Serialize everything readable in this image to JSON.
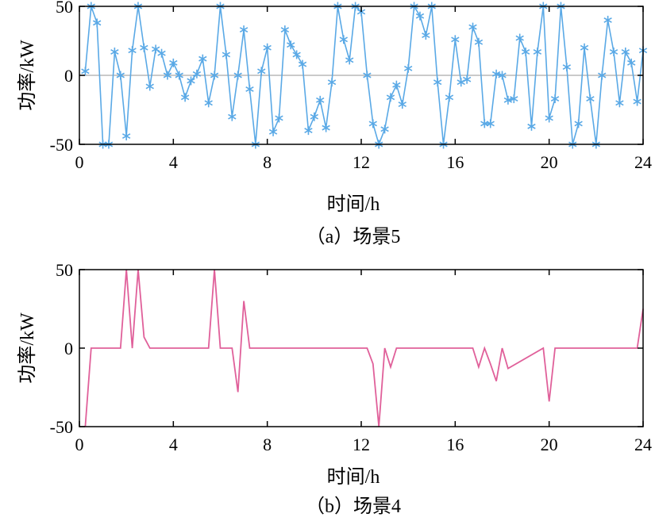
{
  "chart_data": [
    {
      "type": "line",
      "marker": "asterisk",
      "caption": "（a）场景5",
      "xlabel": "时间/h",
      "ylabel": "功率/kW",
      "xlim": [
        0,
        24
      ],
      "ylim": [
        -50,
        50
      ],
      "xticks": [
        0,
        4,
        8,
        12,
        16,
        20,
        24
      ],
      "yticks": [
        -50,
        0,
        50
      ],
      "zero_line": true,
      "color": "#5aa9e6",
      "series": [
        {
          "x": [
            0.25,
            0.5,
            0.75,
            1,
            1.25,
            1.5,
            1.75,
            2,
            2.25,
            2.5,
            2.75,
            3,
            3.25,
            3.5,
            3.75,
            4,
            4.25,
            4.5,
            4.75,
            5,
            5.25,
            5.5,
            5.75,
            6,
            6.25,
            6.5,
            6.75,
            7,
            7.25,
            7.5,
            7.75,
            8,
            8.25,
            8.5,
            8.75,
            9,
            9.25,
            9.5,
            9.75,
            10,
            10.25,
            10.5,
            10.75,
            11,
            11.25,
            11.5,
            11.75,
            12,
            12.25,
            12.5,
            12.75,
            13,
            13.25,
            13.5,
            13.75,
            14,
            14.25,
            14.5,
            14.75,
            15,
            15.25,
            15.5,
            15.75,
            16,
            16.25,
            16.5,
            16.75,
            17,
            17.25,
            17.5,
            17.75,
            18,
            18.25,
            18.5,
            18.75,
            19,
            19.25,
            19.5,
            19.75,
            20,
            20.25,
            20.5,
            20.75,
            21,
            21.25,
            21.5,
            21.75,
            22,
            22.25,
            22.5,
            22.75,
            23,
            23.25,
            23.5,
            23.75,
            24
          ],
          "y": [
            3,
            50,
            38,
            -50,
            -50,
            17,
            0,
            -44,
            18,
            50,
            20,
            -8,
            19,
            16,
            0,
            9,
            0,
            -16,
            -4,
            1,
            12,
            -20,
            0,
            50,
            15,
            -30,
            0,
            33,
            -10,
            -50,
            3,
            20,
            -41,
            -31,
            33,
            22,
            15,
            8,
            -40,
            -30,
            -18,
            -38,
            -5,
            50,
            26,
            11,
            50,
            46,
            0,
            -35,
            -50,
            -39,
            -16,
            -7,
            -21,
            5,
            50,
            43,
            29,
            50,
            -5,
            -50,
            -16,
            26,
            -5,
            -3,
            35,
            24,
            -35,
            -35,
            1,
            0,
            -18,
            -17,
            27,
            17,
            -37,
            17,
            50,
            -31,
            -17,
            50,
            6,
            -50,
            -35,
            20,
            -17,
            -50,
            0,
            40,
            17,
            -20,
            17,
            9,
            -19,
            18
          ]
        }
      ]
    },
    {
      "type": "line",
      "caption": "（b）场景4",
      "xlabel": "时间/h",
      "ylabel": "功率/kW",
      "xlim": [
        0,
        24
      ],
      "ylim": [
        -50,
        50
      ],
      "xticks": [
        0,
        4,
        8,
        12,
        16,
        20,
        24
      ],
      "yticks": [
        -50,
        0,
        50
      ],
      "color": "#e0609a",
      "series": [
        {
          "x": [
            0.25,
            0.5,
            1.75,
            2,
            2.25,
            2.5,
            2.75,
            3,
            5.5,
            5.75,
            6,
            6.5,
            6.75,
            7,
            7.25,
            12.25,
            12.5,
            12.75,
            13,
            13.25,
            13.5,
            16.75,
            17,
            17.25,
            17.5,
            17.75,
            18,
            18.25,
            19.75,
            20,
            20.25,
            23.75,
            24
          ],
          "y": [
            -50,
            0,
            0,
            50,
            0,
            50,
            7,
            0,
            0,
            50,
            0,
            0,
            -28,
            30,
            0,
            0,
            -10,
            -50,
            0,
            -12,
            0,
            0,
            -12,
            0,
            -10,
            -21,
            0,
            -13,
            0,
            -34,
            0,
            0,
            25
          ]
        }
      ]
    }
  ]
}
